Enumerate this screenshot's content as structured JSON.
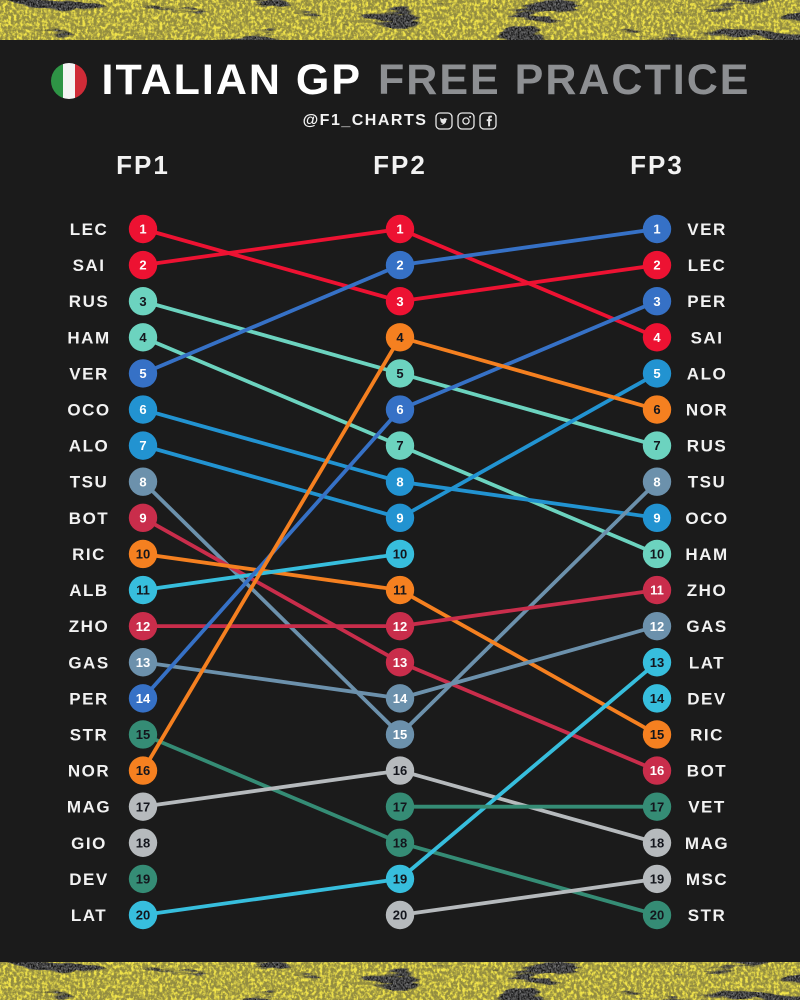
{
  "header": {
    "title_primary": "ITALIAN GP",
    "title_secondary": "FREE PRACTICE",
    "flag": "italian-flag"
  },
  "social": {
    "handle": "@F1_CHARTS",
    "icons": [
      "twitter",
      "instagram",
      "facebook"
    ]
  },
  "colors": {
    "background": "#1b1b1b",
    "tape_yellow": "#f5d411",
    "label_text": "#f2f2f2",
    "title_secondary": "#8d8f92",
    "number_light": "#ffffff",
    "number_dark": "#14161d"
  },
  "chart_data": {
    "type": "line",
    "subtype": "bump-chart",
    "title": "ITALIAN GP FREE PRACTICE",
    "sessions": [
      "FP1",
      "FP2",
      "FP3"
    ],
    "position_range": [
      1,
      20
    ],
    "legend_position": "none",
    "grid": false,
    "drivers": [
      {
        "code": "LEC",
        "color": "#ED1232",
        "number_color": "#ffffff",
        "fp1": 1,
        "fp2": 3,
        "fp3": 2
      },
      {
        "code": "SAI",
        "color": "#ED1232",
        "number_color": "#ffffff",
        "fp1": 2,
        "fp2": 1,
        "fp3": 4
      },
      {
        "code": "RUS",
        "color": "#6CD3BF",
        "number_color": "#14161d",
        "fp1": 3,
        "fp2": 5,
        "fp3": 7
      },
      {
        "code": "HAM",
        "color": "#6CD3BF",
        "number_color": "#14161d",
        "fp1": 4,
        "fp2": 7,
        "fp3": 10
      },
      {
        "code": "VER",
        "color": "#3671C6",
        "number_color": "#ffffff",
        "fp1": 5,
        "fp2": 2,
        "fp3": 1
      },
      {
        "code": "OCO",
        "color": "#2293D1",
        "number_color": "#ffffff",
        "fp1": 6,
        "fp2": 8,
        "fp3": 9
      },
      {
        "code": "ALO",
        "color": "#2293D1",
        "number_color": "#ffffff",
        "fp1": 7,
        "fp2": 9,
        "fp3": 5
      },
      {
        "code": "TSU",
        "color": "#6C91AC",
        "number_color": "#ffffff",
        "fp1": 8,
        "fp2": 15,
        "fp3": 8
      },
      {
        "code": "BOT",
        "color": "#C92D4B",
        "number_color": "#ffffff",
        "fp1": 9,
        "fp2": 13,
        "fp3": 16
      },
      {
        "code": "RIC",
        "color": "#F58020",
        "number_color": "#14161d",
        "fp1": 10,
        "fp2": 11,
        "fp3": 15
      },
      {
        "code": "ALB",
        "color": "#37BEDD",
        "number_color": "#14161d",
        "fp1": 11,
        "fp2": 10,
        "fp3": null
      },
      {
        "code": "ZHO",
        "color": "#C92D4B",
        "number_color": "#ffffff",
        "fp1": 12,
        "fp2": 12,
        "fp3": 11
      },
      {
        "code": "GAS",
        "color": "#6C91AC",
        "number_color": "#ffffff",
        "fp1": 13,
        "fp2": 14,
        "fp3": 12
      },
      {
        "code": "PER",
        "color": "#3671C6",
        "number_color": "#ffffff",
        "fp1": 14,
        "fp2": 6,
        "fp3": 3
      },
      {
        "code": "STR",
        "color": "#358C75",
        "number_color": "#14161d",
        "fp1": 15,
        "fp2": 18,
        "fp3": 20
      },
      {
        "code": "NOR",
        "color": "#F58020",
        "number_color": "#14161d",
        "fp1": 16,
        "fp2": 4,
        "fp3": 6
      },
      {
        "code": "MAG",
        "color": "#B6BABD",
        "number_color": "#14161d",
        "fp1": 17,
        "fp2": 16,
        "fp3": 18
      },
      {
        "code": "GIO",
        "color": "#B6BABD",
        "number_color": "#14161d",
        "fp1": 18,
        "fp2": null,
        "fp3": null
      },
      {
        "code": "DEV",
        "color": "#358C75",
        "color_fp3": "#37BEDD",
        "number_color": "#14161d",
        "fp1": 19,
        "fp2": null,
        "fp3": 14
      },
      {
        "code": "LAT",
        "color": "#37BEDD",
        "number_color": "#14161d",
        "fp1": 20,
        "fp2": 19,
        "fp3": 13
      },
      {
        "code": "VET",
        "color": "#358C75",
        "number_color": "#14161d",
        "fp1": null,
        "fp2": 17,
        "fp3": 17
      },
      {
        "code": "MSC",
        "color": "#B6BABD",
        "number_color": "#14161d",
        "fp1": null,
        "fp2": 20,
        "fp3": 19
      }
    ]
  }
}
